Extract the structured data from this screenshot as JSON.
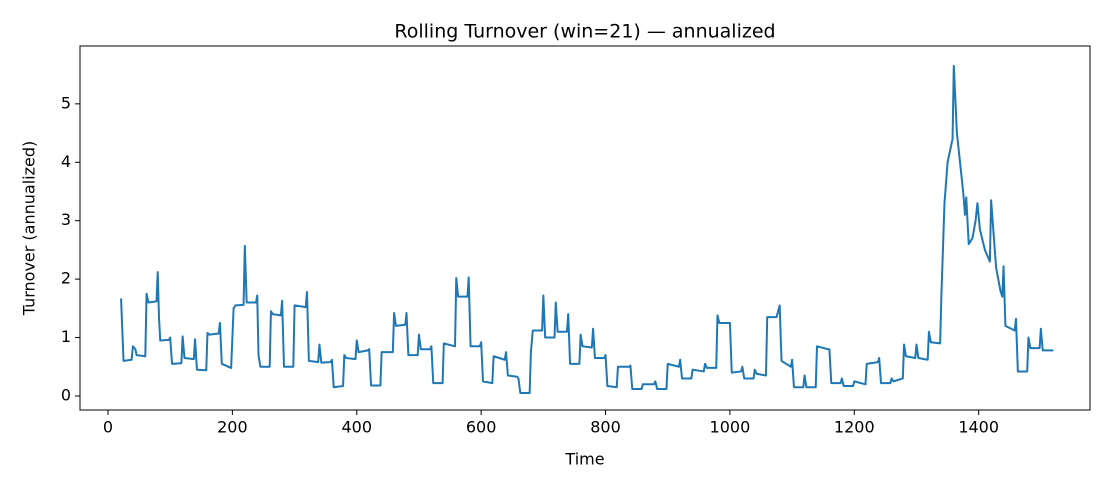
{
  "chart_data": {
    "type": "line",
    "title": "Rolling Turnover (win=21) — annualized",
    "x_label": "Time",
    "y_label": "Turnover (annualized)",
    "x": [
      21,
      25,
      38,
      40,
      44,
      46,
      60,
      62,
      65,
      78,
      80,
      82,
      84,
      98,
      100,
      103,
      118,
      120,
      123,
      138,
      140,
      143,
      158,
      160,
      163,
      178,
      180,
      183,
      198,
      202,
      205,
      218,
      220,
      223,
      238,
      240,
      242,
      245,
      260,
      262,
      265,
      278,
      280,
      283,
      298,
      300,
      318,
      320,
      323,
      338,
      340,
      343,
      358,
      360,
      363,
      378,
      380,
      383,
      398,
      400,
      403,
      418,
      420,
      423,
      438,
      440,
      458,
      460,
      463,
      478,
      480,
      483,
      498,
      500,
      503,
      518,
      520,
      523,
      538,
      540,
      558,
      560,
      563,
      578,
      580,
      583,
      598,
      600,
      603,
      618,
      620,
      638,
      640,
      643,
      658,
      660,
      663,
      678,
      680,
      683,
      698,
      700,
      703,
      718,
      720,
      723,
      738,
      740,
      743,
      758,
      760,
      763,
      778,
      780,
      783,
      798,
      800,
      803,
      818,
      820,
      838,
      840,
      843,
      858,
      860,
      878,
      880,
      883,
      898,
      900,
      918,
      920,
      923,
      938,
      940,
      958,
      960,
      963,
      978,
      980,
      983,
      998,
      1000,
      1003,
      1018,
      1020,
      1023,
      1038,
      1040,
      1043,
      1058,
      1060,
      1075,
      1080,
      1083,
      1098,
      1100,
      1103,
      1118,
      1120,
      1123,
      1138,
      1140,
      1158,
      1160,
      1163,
      1178,
      1180,
      1183,
      1198,
      1200,
      1218,
      1220,
      1238,
      1240,
      1243,
      1258,
      1260,
      1263,
      1278,
      1280,
      1283,
      1298,
      1300,
      1303,
      1318,
      1320,
      1323,
      1338,
      1340,
      1345,
      1350,
      1358,
      1360,
      1365,
      1375,
      1378,
      1380,
      1384,
      1390,
      1395,
      1398,
      1402,
      1410,
      1418,
      1420,
      1428,
      1435,
      1438,
      1440,
      1443,
      1458,
      1460,
      1463,
      1478,
      1480,
      1483,
      1498,
      1500,
      1503,
      1520
    ],
    "series": [
      {
        "color": "#1f77b4",
        "values": [
          1.67,
          0.6,
          0.62,
          0.85,
          0.8,
          0.7,
          0.68,
          1.75,
          1.6,
          1.62,
          2.12,
          1.35,
          0.95,
          0.96,
          1.0,
          0.55,
          0.56,
          1.02,
          0.65,
          0.63,
          0.97,
          0.45,
          0.44,
          1.08,
          1.05,
          1.07,
          1.25,
          0.55,
          0.48,
          1.5,
          1.55,
          1.56,
          2.57,
          1.6,
          1.6,
          1.72,
          0.7,
          0.5,
          0.5,
          1.45,
          1.4,
          1.38,
          1.63,
          0.5,
          0.5,
          1.55,
          1.52,
          1.78,
          0.6,
          0.58,
          0.88,
          0.57,
          0.58,
          0.62,
          0.15,
          0.17,
          0.7,
          0.65,
          0.63,
          0.95,
          0.75,
          0.78,
          0.8,
          0.18,
          0.18,
          0.75,
          0.75,
          1.42,
          1.2,
          1.22,
          1.42,
          0.7,
          0.7,
          1.05,
          0.8,
          0.8,
          0.85,
          0.22,
          0.22,
          0.9,
          0.85,
          2.02,
          1.7,
          1.7,
          2.03,
          0.85,
          0.85,
          0.92,
          0.25,
          0.22,
          0.68,
          0.62,
          0.75,
          0.35,
          0.33,
          0.3,
          0.05,
          0.05,
          0.75,
          1.12,
          1.12,
          1.72,
          1.0,
          1.0,
          1.6,
          1.1,
          1.1,
          1.4,
          0.55,
          0.55,
          1.05,
          0.85,
          0.83,
          1.15,
          0.65,
          0.65,
          0.7,
          0.17,
          0.15,
          0.5,
          0.5,
          0.52,
          0.12,
          0.12,
          0.2,
          0.2,
          0.25,
          0.12,
          0.12,
          0.55,
          0.5,
          0.62,
          0.3,
          0.3,
          0.45,
          0.42,
          0.55,
          0.48,
          0.48,
          1.38,
          1.25,
          1.25,
          1.25,
          0.4,
          0.42,
          0.5,
          0.3,
          0.3,
          0.45,
          0.38,
          0.35,
          1.35,
          1.35,
          1.55,
          0.6,
          0.5,
          0.62,
          0.15,
          0.15,
          0.35,
          0.15,
          0.15,
          0.85,
          0.8,
          0.8,
          0.22,
          0.22,
          0.3,
          0.17,
          0.17,
          0.25,
          0.2,
          0.55,
          0.58,
          0.65,
          0.22,
          0.22,
          0.3,
          0.25,
          0.3,
          0.88,
          0.68,
          0.65,
          0.88,
          0.65,
          0.62,
          1.1,
          0.92,
          0.9,
          1.7,
          3.3,
          4.0,
          4.4,
          5.65,
          4.5,
          3.5,
          3.1,
          3.4,
          2.6,
          2.7,
          3.0,
          3.3,
          2.85,
          2.5,
          2.3,
          3.35,
          2.2,
          1.8,
          1.7,
          2.22,
          1.2,
          1.12,
          1.32,
          0.42,
          0.42,
          1.0,
          0.82,
          0.82,
          1.15,
          0.78,
          0.78
        ]
      }
    ],
    "xlim": [
      -45,
      1579
    ],
    "ylim": [
      -0.24,
      5.99
    ],
    "xticks": [
      0,
      200,
      400,
      600,
      800,
      1000,
      1200,
      1400
    ],
    "yticks": [
      0,
      1,
      2,
      3,
      4,
      5
    ],
    "grid": false
  }
}
